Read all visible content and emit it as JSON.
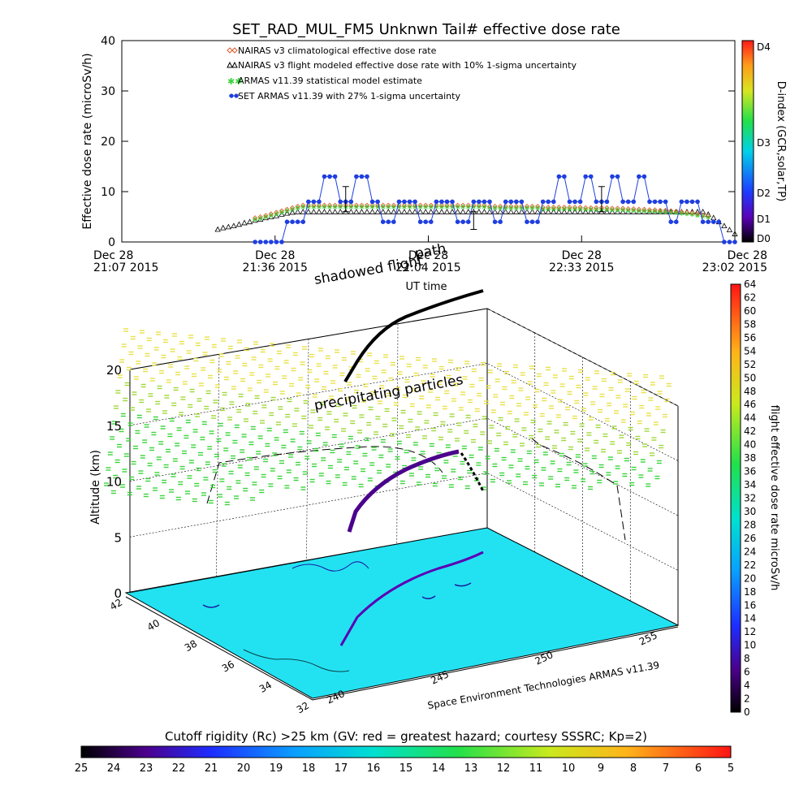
{
  "header": {
    "title": "SET_RAD_MUL_FM5 Unknwn Tail#  effective dose rate"
  },
  "top_chart": {
    "ylabel": "Effective dose rate (microSv/h)",
    "xlabel": "UT time",
    "yticks": [
      "0",
      "10",
      "20",
      "30",
      "40"
    ],
    "xticks": [
      {
        "d": "Dec 28",
        "t": "21:07 2015"
      },
      {
        "d": "Dec 28",
        "t": "21:36 2015"
      },
      {
        "d": "Dec 28",
        "t": "22:04 2015"
      },
      {
        "d": "Dec 28",
        "t": "22:33 2015"
      },
      {
        "d": "Dec 28",
        "t": "23:02 2015"
      }
    ],
    "legend": [
      "NAIRAS v3 climatological effective dose rate",
      "NAIRAS v3 flight modeled effective dose rate with 10% 1-sigma uncertainty",
      "ARMAS v11.39 statistical model estimate",
      "SET ARMAS v11.39 with 27% 1-sigma uncertainty"
    ],
    "colors": {
      "nairas_clim": "#e05a28",
      "nairas_flight": "#000000",
      "armas_stat": "#3ad43a",
      "set_armas": "#1f3fe0"
    }
  },
  "dindex_bar": {
    "label": "D-index (GCR,solar,TP)",
    "ticks": [
      "D4",
      "D3",
      "D2",
      "D1",
      "D0"
    ]
  },
  "overlay": {
    "shadowed": "shadowed flight",
    "path": "path",
    "precipitating": "precipitating particles"
  },
  "plot3d": {
    "zlabel": "Altitude (km)",
    "zticks": [
      "0",
      "5",
      "10",
      "15",
      "20"
    ],
    "lat_ticks": [
      "42",
      "40",
      "38",
      "36",
      "34",
      "32"
    ],
    "lon_ticks": [
      "240",
      "245",
      "250",
      "255"
    ],
    "credit": "Space Environment Technologies ARMAS v11.39"
  },
  "dose_bar": {
    "label": "flight effective dose rate microSv/h",
    "ticks": [
      "0",
      "2",
      "4",
      "6",
      "8",
      "10",
      "12",
      "14",
      "16",
      "18",
      "20",
      "22",
      "24",
      "26",
      "28",
      "30",
      "32",
      "34",
      "36",
      "38",
      "40",
      "42",
      "44",
      "46",
      "48",
      "50",
      "52",
      "54",
      "56",
      "58",
      "60",
      "62",
      "64"
    ]
  },
  "cutoff_bar": {
    "title": "Cutoff rigidity (Rc) >25 km (GV: red = greatest hazard; courtesy SSSRC; Kp=2)",
    "ticks": [
      "25",
      "24",
      "23",
      "22",
      "21",
      "20",
      "19",
      "18",
      "17",
      "16",
      "15",
      "14",
      "13",
      "12",
      "11",
      "10",
      "9",
      "8",
      "7",
      "6",
      "5"
    ]
  },
  "chart_data": [
    {
      "type": "line",
      "title": "SET_RAD_MUL_FM5 Unknwn Tail#  effective dose rate",
      "xlabel": "UT time",
      "ylabel": "Effective dose rate (microSv/h)",
      "xlim": [
        "21:07",
        "23:02"
      ],
      "ylim": [
        0,
        40
      ],
      "x_unit": "minutes after 21:07 UT, Dec 28 2015",
      "series": [
        {
          "name": "SET ARMAS v11.39 with 27% 1-sigma uncertainty",
          "x": [
            25,
            26,
            27,
            28,
            29,
            30,
            31,
            32,
            33,
            34,
            35,
            36,
            37,
            38,
            39,
            40,
            41,
            42,
            43,
            44,
            45,
            46,
            47,
            48,
            49,
            50,
            51,
            52,
            53,
            54,
            55,
            56,
            57,
            58,
            59,
            60,
            61,
            62,
            63,
            64,
            65,
            66,
            67,
            68,
            69,
            70,
            71,
            72,
            73,
            74,
            75,
            76,
            77,
            78,
            79,
            80,
            81,
            82,
            83,
            84,
            85,
            86,
            87,
            88,
            89,
            90,
            91,
            92,
            93,
            94,
            95,
            96,
            97,
            98,
            99,
            100,
            101,
            102,
            103,
            104,
            105,
            106,
            107,
            108,
            109,
            110,
            111,
            112,
            113,
            114,
            115
          ],
          "values": [
            0,
            0,
            0,
            0,
            0,
            0,
            4,
            4,
            4,
            4,
            8,
            8,
            8,
            13,
            13,
            13,
            8,
            8,
            8,
            13,
            13,
            13,
            8,
            8,
            4,
            4,
            4,
            8,
            8,
            8,
            8,
            4,
            4,
            4,
            8,
            8,
            8,
            8,
            4,
            4,
            4,
            8,
            8,
            8,
            8,
            4,
            4,
            8,
            8,
            8,
            8,
            4,
            4,
            4,
            8,
            8,
            8,
            13,
            13,
            8,
            8,
            8,
            13,
            13,
            8,
            8,
            8,
            13,
            13,
            8,
            8,
            8,
            13,
            13,
            8,
            8,
            8,
            8,
            4,
            4,
            8,
            8,
            8,
            8,
            4,
            4,
            4,
            4,
            0,
            0,
            0
          ]
        },
        {
          "name": "NAIRAS v3 flight modeled effective dose rate with 10% 1-sigma uncertainty",
          "x": [
            18,
            19,
            20,
            21,
            22,
            23,
            24,
            25,
            26,
            27,
            28,
            29,
            30,
            31,
            32,
            33,
            34,
            35,
            36,
            37,
            38,
            39,
            40,
            41,
            42,
            43,
            44,
            45,
            46,
            47,
            48,
            49,
            50,
            51,
            52,
            53,
            54,
            55,
            56,
            57,
            58,
            59,
            60,
            61,
            62,
            63,
            64,
            65,
            66,
            67,
            68,
            69,
            70,
            71,
            72,
            73,
            74,
            75,
            76,
            77,
            78,
            79,
            80,
            81,
            82,
            83,
            84,
            85,
            86,
            87,
            88,
            89,
            90,
            91,
            92,
            93,
            94,
            95,
            96,
            97,
            98,
            99,
            100,
            101,
            102,
            103,
            104,
            105,
            106,
            107,
            108,
            109,
            110,
            111,
            112,
            113,
            114,
            115
          ],
          "values": [
            2.5,
            2.8,
            3,
            3.2,
            3.5,
            3.8,
            4,
            4.3,
            4.5,
            4.8,
            5,
            5.2,
            5.5,
            5.7,
            5.9,
            6,
            6,
            6,
            6,
            6,
            6,
            6,
            6,
            6,
            6,
            6,
            6,
            6,
            6,
            6,
            6,
            6,
            6,
            6,
            6,
            6,
            6,
            6,
            6,
            6,
            6,
            6,
            6,
            6,
            6,
            6,
            6,
            6,
            6,
            6,
            6,
            6,
            6,
            6,
            6,
            6,
            6,
            6,
            6,
            6,
            6,
            6,
            6,
            6,
            6,
            6,
            6,
            6,
            6,
            6,
            6,
            6,
            6,
            6,
            6,
            6,
            6,
            6,
            6,
            6,
            6,
            6,
            6,
            6,
            6,
            6,
            6,
            6,
            6,
            6,
            6,
            6,
            5.5,
            4.8,
            4,
            3.2,
            2.4,
            1.6
          ]
        },
        {
          "name": "ARMAS v11.39 statistical model estimate",
          "x": [
            25,
            26,
            27,
            28,
            29,
            30,
            31,
            32,
            33,
            34,
            35,
            36,
            37,
            38,
            39,
            40,
            41,
            42,
            43,
            44,
            45,
            46,
            47,
            48,
            49,
            50,
            51,
            52,
            53,
            54,
            55,
            56,
            57,
            58,
            59,
            60,
            61,
            62,
            63,
            64,
            65,
            66,
            67,
            68,
            69,
            70,
            71,
            72,
            73,
            74,
            75,
            76,
            77,
            78,
            79,
            80,
            81,
            82,
            83,
            84,
            85,
            86,
            87,
            88,
            89,
            90,
            91,
            92,
            93,
            94,
            95,
            96,
            97,
            98,
            99,
            100,
            101,
            102,
            103,
            104,
            105,
            106,
            107,
            108,
            109,
            110
          ],
          "values": [
            4.5,
            4.7,
            5,
            5.3,
            5.6,
            5.9,
            6.2,
            6.5,
            6.8,
            7,
            7,
            7,
            7,
            7,
            7,
            7,
            7,
            7,
            7,
            7,
            7,
            7,
            7,
            7,
            7,
            7,
            7,
            7,
            7,
            7,
            7,
            7,
            7,
            7,
            7,
            7,
            7,
            7,
            7,
            7,
            7,
            7,
            7,
            7,
            6.8,
            6.8,
            6.8,
            6.8,
            6.8,
            6.8,
            6.8,
            6.8,
            6.8,
            6.8,
            6.6,
            6.6,
            6.6,
            6.6,
            6.6,
            6.6,
            6.6,
            6.6,
            6.5,
            6.5,
            6.5,
            6.5,
            6.5,
            6.4,
            6.4,
            6.4,
            6.3,
            6.3,
            6.2,
            6.2,
            6.1,
            6.1,
            6,
            6,
            5.9,
            5.8,
            5.7,
            5.6,
            5.5,
            5.3,
            5.1,
            4.9
          ]
        },
        {
          "name": "NAIRAS v3 climatological effective dose rate",
          "x": [
            25,
            26,
            27,
            28,
            29,
            30,
            31,
            32,
            33,
            34,
            35,
            36,
            37,
            38,
            39,
            40,
            41,
            42,
            43,
            44,
            45,
            46,
            47,
            48,
            49,
            50,
            51,
            52,
            53,
            54,
            55,
            56,
            57,
            58,
            59,
            60,
            61,
            62,
            63,
            64,
            65,
            66,
            67,
            68,
            69,
            70,
            71,
            72,
            73,
            74,
            75,
            76,
            77,
            78,
            79,
            80,
            81,
            82,
            83,
            84,
            85,
            86,
            87,
            88,
            89,
            90,
            91,
            92,
            93,
            94,
            95,
            96,
            97,
            98,
            99,
            100,
            101,
            102,
            103,
            104,
            105,
            106,
            107,
            108,
            109,
            110
          ],
          "values": [
            4.8,
            5,
            5.3,
            5.6,
            5.9,
            6.2,
            6.5,
            6.8,
            7.1,
            7.3,
            7.3,
            7.3,
            7.3,
            7.3,
            7.3,
            7.3,
            7.3,
            7.3,
            7.3,
            7.3,
            7.3,
            7.3,
            7.3,
            7.3,
            7.3,
            7.3,
            7.3,
            7.3,
            7.3,
            7.3,
            7.3,
            7.3,
            7.3,
            7.3,
            7.3,
            7.3,
            7.3,
            7.3,
            7.3,
            7.3,
            7.3,
            7.3,
            7.3,
            7.3,
            7.1,
            7.1,
            7.1,
            7.1,
            7.1,
            7.1,
            7.1,
            7.1,
            7.1,
            7.1,
            6.9,
            6.9,
            6.9,
            6.9,
            6.9,
            6.9,
            6.9,
            6.9,
            6.8,
            6.8,
            6.8,
            6.8,
            6.8,
            6.7,
            6.7,
            6.7,
            6.6,
            6.6,
            6.5,
            6.5,
            6.4,
            6.4,
            6.3,
            6.3,
            6.2,
            6.1,
            6,
            5.9,
            5.8,
            5.6,
            5.4,
            5.2
          ]
        }
      ]
    },
    {
      "type": "scatter",
      "title": "",
      "xlabel": "",
      "ylabel": "Altitude (km)",
      "zlim": [
        0,
        20
      ],
      "lat_range": [
        32,
        42
      ],
      "lon_range": [
        240,
        255
      ],
      "colorbar": "flight effective dose rate microSv/h",
      "colorbar_range": [
        0,
        64
      ],
      "series": [
        {
          "name": "flight effective dose rate microSv/h",
          "altitude_km": [
            0.5,
            3,
            5,
            7,
            9,
            10.5,
            11,
            11.2,
            11.2,
            11.2,
            11.2,
            10.5,
            8,
            5,
            2
          ],
          "dose": [
            1,
            2,
            3,
            5,
            7,
            8,
            8,
            8,
            8,
            8,
            8,
            7,
            5,
            3,
            1
          ]
        }
      ]
    },
    {
      "type": "heatmap",
      "title": "Cutoff rigidity (Rc) >25 km (GV: red = greatest hazard; courtesy SSSRC; Kp=2)",
      "colorbar_range": [
        25,
        5
      ]
    }
  ]
}
